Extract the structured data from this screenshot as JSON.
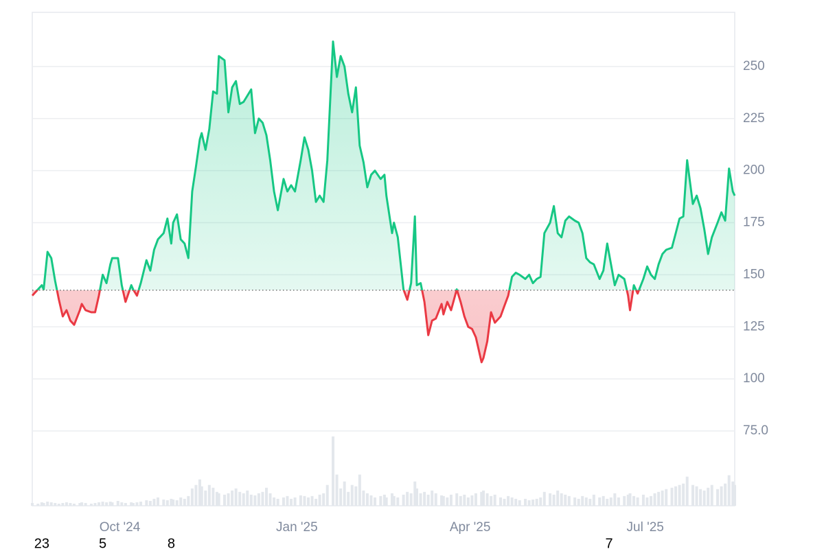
{
  "chart_data": {
    "type": "line",
    "x": [
      0,
      3,
      5,
      6,
      8,
      10,
      12,
      14,
      16,
      18,
      20,
      22,
      25,
      26,
      28,
      31,
      33,
      35,
      37,
      39,
      41,
      42,
      45,
      47,
      49,
      52,
      53,
      55,
      57,
      60,
      62,
      64,
      66,
      69,
      71,
      73,
      74,
      76,
      78,
      80,
      82,
      84,
      86,
      88,
      89,
      91,
      93,
      95,
      97,
      98,
      101,
      103,
      105,
      107,
      109,
      111,
      113,
      115,
      117,
      119,
      121,
      123,
      125,
      127,
      129,
      132,
      134,
      136,
      138,
      141,
      143,
      145,
      147,
      149,
      151,
      153,
      155,
      158,
      160,
      162,
      164,
      166,
      168,
      170,
      172,
      174,
      176,
      178,
      180,
      183,
      185,
      186,
      189,
      190,
      192,
      195,
      197,
      199,
      201,
      202,
      204,
      206,
      208,
      210,
      212,
      215,
      216,
      218,
      220,
      223,
      225,
      227,
      229,
      231,
      233,
      236,
      237,
      239,
      241,
      243,
      246,
      248,
      250,
      252,
      254,
      256,
      259,
      261,
      263,
      265,
      267,
      269,
      272,
      274,
      276,
      278,
      280,
      282,
      285,
      287,
      289,
      291,
      293,
      295,
      298,
      300,
      302,
      304,
      306,
      308,
      311,
      313,
      314,
      316,
      318,
      321,
      323,
      325,
      327,
      329,
      331,
      333,
      336,
      338,
      340,
      342,
      344,
      347,
      349,
      351,
      353,
      355,
      357,
      360,
      362,
      364,
      366,
      368,
      369
    ],
    "series": [
      {
        "color": "#16c784",
        "negative_color": "#ea3943",
        "values": [
          140,
          143,
          145,
          143,
          161,
          158,
          147,
          138,
          130,
          133,
          128,
          126,
          133,
          136,
          133,
          132,
          132,
          140,
          150,
          146,
          155,
          158,
          158,
          145,
          137,
          145,
          143,
          140,
          146,
          157,
          152,
          162,
          167,
          170,
          177,
          165,
          175,
          179,
          167,
          165,
          158,
          190,
          202,
          215,
          218,
          210,
          220,
          238,
          237,
          255,
          253,
          228,
          240,
          243,
          232,
          233,
          236,
          239,
          218,
          225,
          223,
          217,
          205,
          190,
          181,
          196,
          190,
          193,
          190,
          205,
          216,
          210,
          200,
          185,
          188,
          185,
          205,
          262,
          245,
          255,
          250,
          237,
          228,
          240,
          212,
          204,
          192,
          198,
          200,
          196,
          198,
          188,
          170,
          175,
          168,
          143,
          138,
          146,
          178,
          145,
          146,
          137,
          121,
          128,
          129,
          136,
          131,
          137,
          133,
          143,
          137,
          130,
          125,
          124,
          120,
          108,
          110,
          118,
          132,
          127,
          130,
          135,
          140,
          149,
          151,
          150,
          148,
          150,
          146,
          148,
          149,
          170,
          175,
          183,
          170,
          168,
          176,
          178,
          176,
          175,
          170,
          158,
          156,
          155,
          148,
          152,
          165,
          155,
          145,
          150,
          148,
          140,
          133,
          145,
          141,
          148,
          154,
          150,
          148,
          155,
          160,
          162,
          163,
          170,
          177,
          178,
          205,
          184,
          188,
          182,
          172,
          160,
          168,
          175,
          180,
          176,
          201,
          190,
          188
        ]
      }
    ],
    "baseline": 142.6,
    "volume": {
      "color": "#e3e7ec",
      "values": [
        4,
        3,
        5,
        4,
        6,
        5,
        4,
        3,
        4,
        5,
        4,
        3,
        4,
        5,
        4,
        3,
        4,
        5,
        6,
        5,
        6,
        5,
        7,
        5,
        4,
        5,
        4,
        5,
        6,
        8,
        7,
        10,
        12,
        9,
        8,
        10,
        9,
        8,
        12,
        10,
        14,
        25,
        30,
        38,
        28,
        22,
        30,
        26,
        20,
        18,
        16,
        18,
        22,
        25,
        20,
        18,
        22,
        16,
        15,
        18,
        20,
        26,
        18,
        12,
        10,
        12,
        14,
        10,
        12,
        15,
        14,
        12,
        14,
        10,
        16,
        18,
        30,
        100,
        45,
        25,
        35,
        20,
        30,
        28,
        45,
        22,
        18,
        15,
        12,
        14,
        16,
        12,
        18,
        14,
        12,
        16,
        20,
        18,
        35,
        25,
        18,
        20,
        16,
        22,
        18,
        15,
        14,
        12,
        16,
        18,
        14,
        16,
        12,
        15,
        18,
        20,
        22,
        18,
        14,
        16,
        12,
        10,
        14,
        12,
        10,
        8,
        10,
        8,
        9,
        10,
        12,
        20,
        18,
        16,
        22,
        18,
        16,
        14,
        12,
        10,
        14,
        12,
        10,
        16,
        12,
        14,
        10,
        12,
        18,
        12,
        14,
        16,
        18,
        14,
        12,
        16,
        12,
        14,
        18,
        20,
        22,
        24,
        26,
        28,
        30,
        32,
        42,
        30,
        28,
        24,
        22,
        26,
        30,
        24,
        28,
        32,
        44,
        35,
        30
      ]
    },
    "volume_lim": [
      0,
      100
    ],
    "xlim": [
      0,
      369
    ],
    "ylim": [
      39.1,
      276
    ],
    "yticks": [
      {
        "value": 75,
        "label": "75.0"
      },
      100,
      125,
      150,
      175,
      200,
      225,
      250
    ],
    "xticks": [
      {
        "value": 46,
        "label": "Oct '24"
      },
      {
        "value": 139,
        "label": "Jan '25"
      },
      {
        "value": 230,
        "label": "Apr '25"
      },
      {
        "value": 322,
        "label": "Jul '25"
      }
    ],
    "x_minor_labels": [
      {
        "value": 5,
        "label": "23"
      },
      {
        "value": 37,
        "label": "5"
      },
      {
        "value": 73,
        "label": "8"
      },
      {
        "value": 303,
        "label": "7"
      }
    ],
    "grid": true
  }
}
